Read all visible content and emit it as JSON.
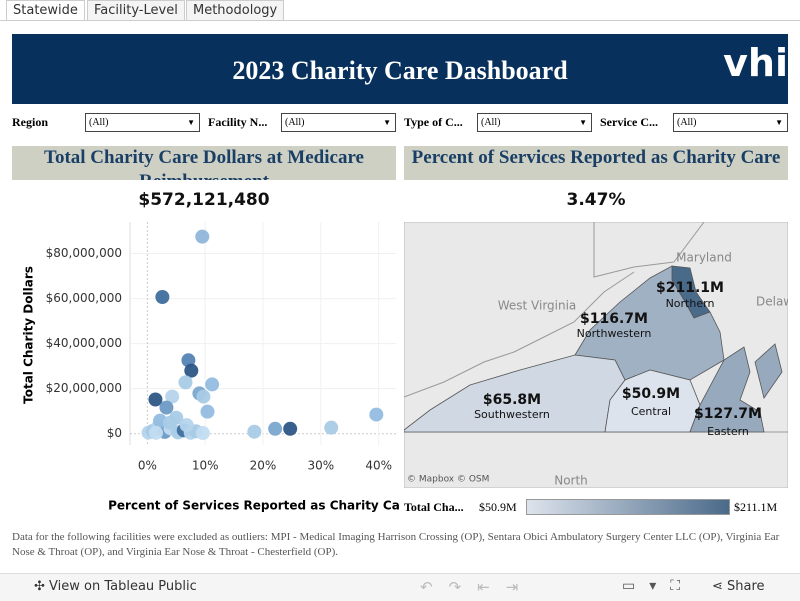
{
  "tabs": [
    "Statewide",
    "Facility-Level",
    "Methodology"
  ],
  "header": {
    "title": "2023 Charity Care Dashboard",
    "logo": "vhi"
  },
  "filters": [
    {
      "label": "Region",
      "value": "(All)"
    },
    {
      "label": "Facility N...",
      "value": "(All)"
    },
    {
      "label": "Type of C...",
      "value": "(All)"
    },
    {
      "label": "Service C...",
      "value": "(All)"
    }
  ],
  "left_panel": {
    "title": "Total Charity Care Dollars at Medicare Reimbursement",
    "kpi": "$572,121,480"
  },
  "right_panel": {
    "title": "Percent of Services Reported as Charity Care",
    "kpi": "3.47%"
  },
  "chart_data": {
    "type": "scatter",
    "x_label": "Percent of Services Reported as Charity Care",
    "y_label": "Total Charity Dollars",
    "x": [
      9.5,
      2.6,
      7.1,
      7.6,
      11.2,
      9.0,
      9.7,
      6.6,
      4.3,
      1.4,
      3.3,
      10.4,
      5.0,
      39.6,
      31.8,
      24.7,
      22.1,
      18.5,
      0.2,
      0.9,
      1.9,
      3.0,
      4.0,
      5.3,
      6.3,
      7.5,
      8.4,
      9.6,
      2.2,
      3.9,
      6.8,
      1.5
    ],
    "values": [
      87500000,
      60700000,
      32600000,
      28000000,
      21900000,
      17900000,
      16500000,
      22800000,
      16500000,
      15200000,
      11600000,
      9800000,
      7100000,
      8500000,
      2700000,
      2200000,
      2200000,
      900000,
      500000,
      1200000,
      3200000,
      800000,
      2400000,
      600000,
      1500000,
      400000,
      1100000,
      300000,
      5800000,
      4900000,
      3800000,
      400000
    ],
    "colors": [
      "#8fb6d9",
      "#3f6e9e",
      "#5584b4",
      "#2e5686",
      "#93bde0",
      "#7aa6cf",
      "#a8cbe6",
      "#a8cbe6",
      "#b5d4ec",
      "#2e5686",
      "#6d9ac6",
      "#93bde0",
      "#a8cbe6",
      "#93bde0",
      "#a8cbe6",
      "#2e5686",
      "#7aa6cf",
      "#a8cbe6",
      "#b5d4ec",
      "#a8cbe6",
      "#b5d4ec",
      "#6d9ac6",
      "#c2dcf0",
      "#a8cbe6",
      "#3f6e9e",
      "#b5d4ec",
      "#a8cbe6",
      "#c2dcf0",
      "#93bde0",
      "#a8cbe6",
      "#b5d4ec",
      "#c2dcf0"
    ],
    "xlim": [
      -3,
      43
    ],
    "ylim": [
      -5000000,
      94000000
    ],
    "xticks": [
      {
        "value": 0,
        "label": "0%"
      },
      {
        "value": 10,
        "label": "10%"
      },
      {
        "value": 20,
        "label": "20%"
      },
      {
        "value": 30,
        "label": "30%"
      },
      {
        "value": 40,
        "label": "40%"
      }
    ],
    "yticks": [
      {
        "value": 0,
        "label": "$0"
      },
      {
        "value": 20000000,
        "label": "$20,000,000"
      },
      {
        "value": 40000000,
        "label": "$40,000,000"
      },
      {
        "value": 60000000,
        "label": "$60,000,000"
      },
      {
        "value": 80000000,
        "label": "$80,000,000"
      }
    ]
  },
  "map": {
    "names": [
      "Northern",
      "Northwestern",
      "Southwestern",
      "Central",
      "Eastern"
    ],
    "values": [
      211.1,
      116.7,
      65.8,
      50.9,
      127.7
    ],
    "value_labels": [
      "$211.1M",
      "$116.7M",
      "$65.8M",
      "$50.9M",
      "$127.7M"
    ],
    "places": [
      "Maryland",
      "West Virginia",
      "Delaw",
      "North"
    ],
    "attribution": "© Mapbox © OSM",
    "legend": {
      "title": "Total Cha...",
      "min": {
        "value": 50.9,
        "label": "$50.9M"
      },
      "max": {
        "value": 211.1,
        "label": "$211.1M"
      }
    }
  },
  "footnote": "Data for the following facilities were excluded as outliers: MPI - Medical Imaging Harrison Crossing (OP), Sentara Obici Ambulatory Surgery Center LLC (OP), Virginia Ear Nose & Throat (OP), and Virginia Ear Nose & Throat - Chesterfield (OP).",
  "toolbar": {
    "view": "View on Tableau Public",
    "share": "Share"
  }
}
